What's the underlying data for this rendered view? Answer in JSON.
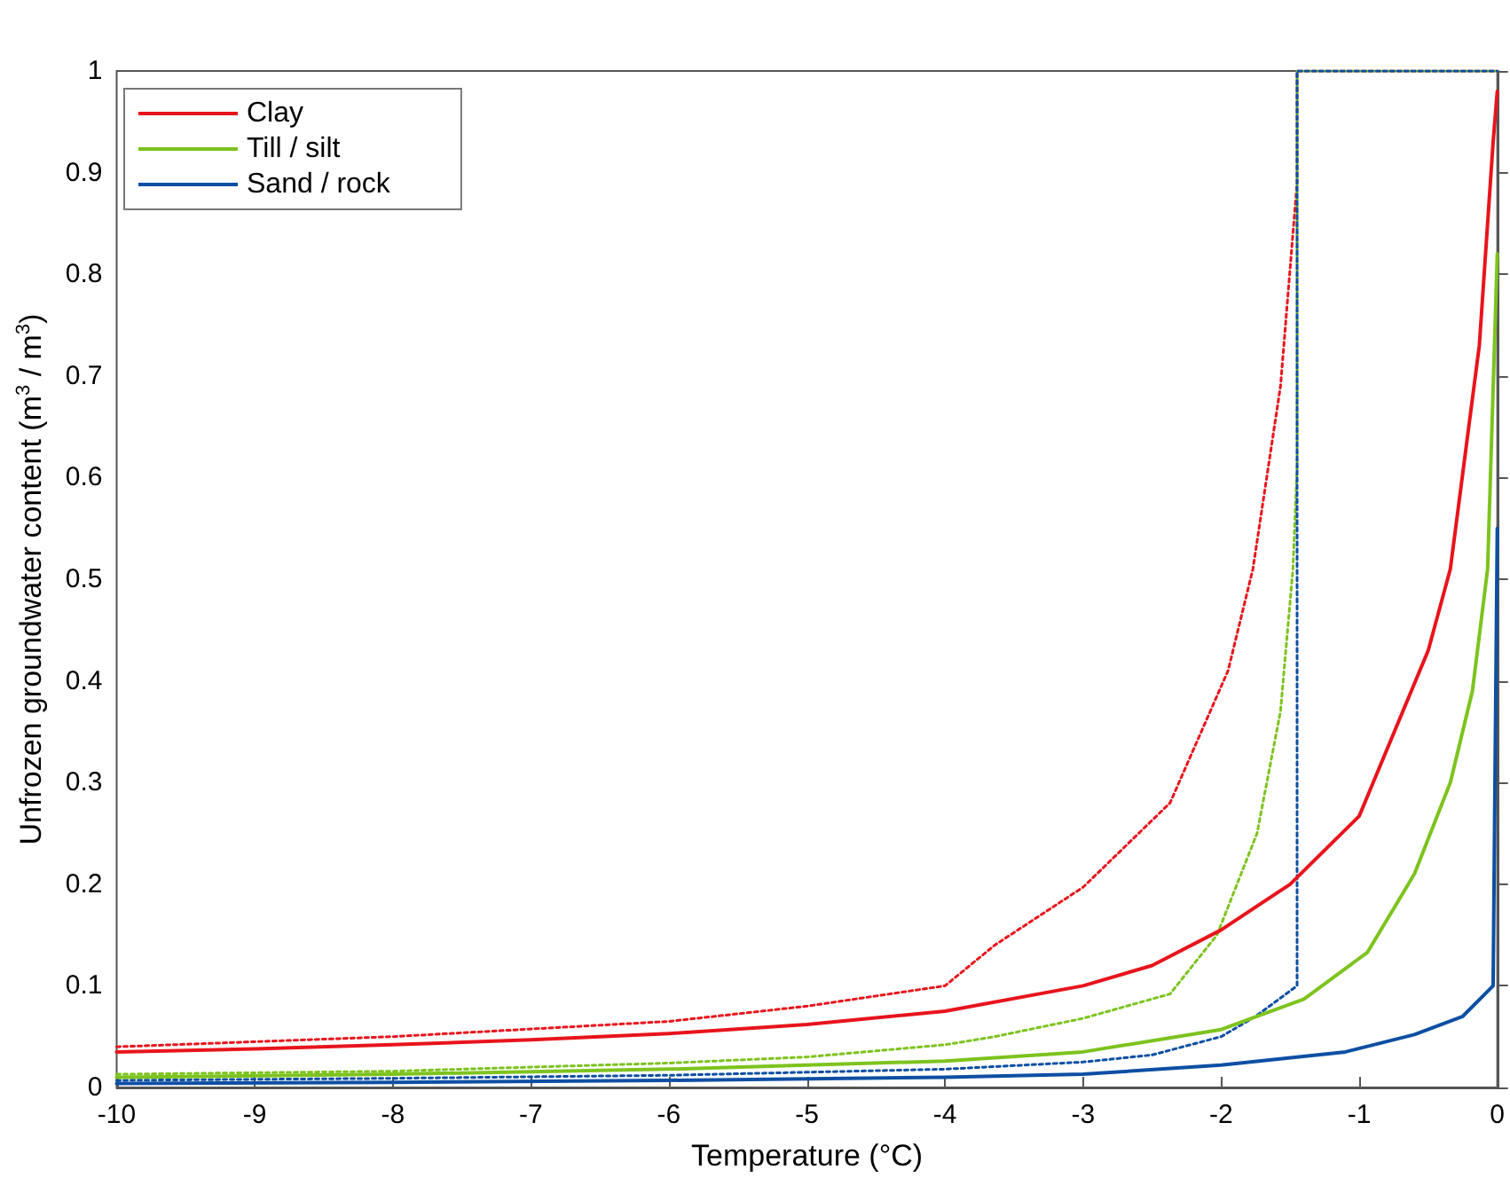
{
  "chart_data": {
    "type": "line",
    "xlabel": "Temperature (°C)",
    "ylabel": "Unfrozen groundwater content (m$^{3}$ / m$^{3}$)",
    "xlim": [
      -10,
      0
    ],
    "xticks": [
      -10,
      -9,
      -8,
      -7,
      -6,
      -5,
      -4,
      -3,
      -2,
      -1,
      0
    ],
    "ylim": [
      0,
      1
    ],
    "yticks": [
      0,
      0.1,
      0.2,
      0.3,
      0.4,
      0.5,
      0.6,
      0.7,
      0.8,
      0.9,
      1
    ],
    "grid": false,
    "legend": "top left",
    "marker": "none",
    "line_style": "solid",
    "series": [
      {
        "name": "Clay",
        "color": "#e8141c",
        "x": [
          -10,
          -9,
          -8,
          -7,
          -6,
          -5,
          -4,
          -3,
          -2.5,
          -2,
          -1.5,
          -1,
          -0.5,
          -0.34,
          -0.13,
          -0.03,
          0
        ],
        "values": [
          0.035,
          0.038,
          0.042,
          0.047,
          0.053,
          0.062,
          0.075,
          0.1,
          0.12,
          0.155,
          0.2,
          0.267,
          0.43,
          0.51,
          0.73,
          0.93,
          0.98
        ]
      },
      {
        "name": "Till / silt",
        "color": "#7dc31e",
        "x": [
          -10,
          -8,
          -6,
          -5,
          -4,
          -3,
          -2,
          -1.4,
          -0.94,
          -0.6,
          -0.34,
          -0.18,
          -0.07,
          0
        ],
        "values": [
          0.01,
          0.013,
          0.018,
          0.022,
          0.026,
          0.035,
          0.057,
          0.087,
          0.133,
          0.21,
          0.3,
          0.39,
          0.51,
          0.82
        ]
      },
      {
        "name": "Sand / rock",
        "color": "#0d4fa3",
        "x": [
          -10,
          -8,
          -6,
          -4,
          -3,
          -2,
          -1.1,
          -0.6,
          -0.25,
          -0.03,
          0
        ],
        "values": [
          0.004,
          0.005,
          0.007,
          0.01,
          0.013,
          0.022,
          0.035,
          0.052,
          0.07,
          0.1,
          0.55
        ]
      },
      {
        "color": "#e8141c",
        "line_style": "dotted",
        "x": [
          -10,
          -8,
          -6,
          -5,
          -4,
          -3.64,
          -3,
          -2.37,
          -1.95,
          -1.77,
          -1.57,
          -1.45,
          -1.45,
          0
        ],
        "values": [
          0.04,
          0.05,
          0.065,
          0.08,
          0.1,
          0.14,
          0.197,
          0.28,
          0.41,
          0.51,
          0.69,
          0.89,
          1,
          1
        ]
      },
      {
        "color": "#7dc31e",
        "line_style": "dotted",
        "x": [
          -10,
          -8,
          -6,
          -5,
          -4,
          -3.64,
          -3,
          -2.37,
          -2.03,
          -1.74,
          -1.57,
          -1.48,
          -1.45,
          -1.45,
          0
        ],
        "values": [
          0.013,
          0.016,
          0.024,
          0.03,
          0.042,
          0.05,
          0.068,
          0.092,
          0.15,
          0.25,
          0.37,
          0.51,
          0.61,
          1,
          1
        ]
      },
      {
        "color": "#0d4fa3",
        "line_style": "dotted",
        "x": [
          -10,
          -8,
          -6,
          -4,
          -3,
          -2.5,
          -2,
          -1.75,
          -1.5,
          -1.45,
          -1.45,
          0
        ],
        "values": [
          0.007,
          0.009,
          0.012,
          0.018,
          0.025,
          0.032,
          0.05,
          0.07,
          0.095,
          0.1,
          1,
          1
        ]
      }
    ]
  }
}
